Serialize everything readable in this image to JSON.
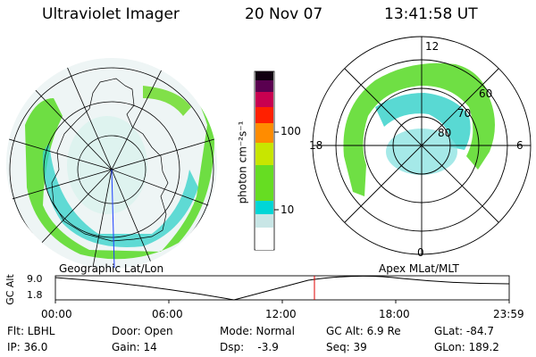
{
  "header": {
    "instrument": "Ultraviolet Imager",
    "date": "20 Nov 07",
    "time": "13:41:58 UT"
  },
  "left_map": {
    "caption": "Geographic Lat/Lon"
  },
  "right_map": {
    "caption": "Apex MLat/MLT",
    "mlt_labels": {
      "top": "12",
      "left": "18",
      "right": "6",
      "bottom": "0"
    },
    "lat_labels": [
      "60",
      "70",
      "80"
    ]
  },
  "colorbar": {
    "unit_label": "photon cm⁻²s⁻¹",
    "ticks": [
      "100",
      "10"
    ],
    "colors": [
      "#ffffff",
      "#c8e6e6",
      "#00d6d6",
      "#66dd22",
      "#c8e600",
      "#ff8c00",
      "#ff2000",
      "#c80050",
      "#5a0050",
      "#100010"
    ]
  },
  "altitude_plot": {
    "ylabel": "GC Alt",
    "yticks": [
      "9.0",
      "1.8"
    ],
    "xticks": [
      "00:00",
      "06:00",
      "12:00",
      "18:00",
      "23:59"
    ],
    "current_time_marker_hours": 13.7
  },
  "footer": {
    "filter": "Flt: LBHL",
    "ip": "IP: 36.0",
    "door": "Door: Open",
    "gain": "Gain: 14",
    "mode": "Mode: Normal",
    "dsp": "Dsp:    -3.9",
    "gc_alt": "GC Alt: 6.9 Re",
    "seq": "Seq: 39",
    "glat": "GLat: -84.7",
    "glon": "GLon: 189.2"
  }
}
